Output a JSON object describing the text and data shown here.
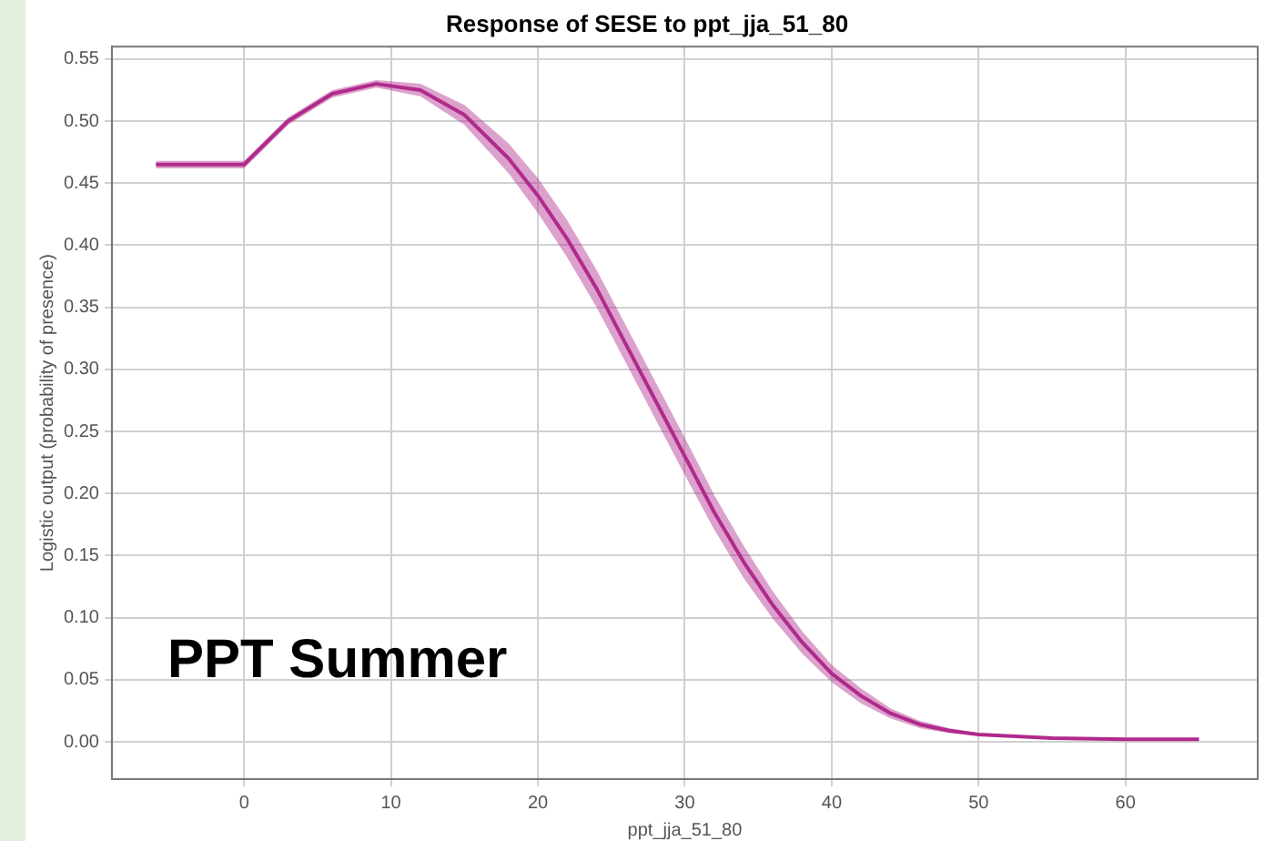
{
  "chart_data": {
    "type": "line",
    "title": "Response of SESE to ppt_jja_51_80",
    "xlabel": "ppt_jja_51_80",
    "ylabel": "Logistic output (probability of presence)",
    "annotations": [
      "PPT Summer"
    ],
    "x": [
      -6,
      0,
      3,
      6,
      9,
      12,
      15,
      18,
      20,
      22,
      24,
      26,
      28,
      30,
      32,
      34,
      36,
      38,
      40,
      42,
      44,
      46,
      48,
      50,
      55,
      60,
      65
    ],
    "series": [
      {
        "color": "#b02a8c",
        "values": [
          0.465,
          0.465,
          0.5,
          0.522,
          0.53,
          0.525,
          0.505,
          0.47,
          0.44,
          0.405,
          0.365,
          0.32,
          0.275,
          0.23,
          0.185,
          0.145,
          0.11,
          0.08,
          0.055,
          0.037,
          0.023,
          0.014,
          0.009,
          0.006,
          0.003,
          0.002,
          0.002
        ],
        "lower": [
          0.462,
          0.462,
          0.497,
          0.519,
          0.527,
          0.52,
          0.497,
          0.458,
          0.426,
          0.39,
          0.35,
          0.305,
          0.26,
          0.215,
          0.171,
          0.132,
          0.099,
          0.071,
          0.048,
          0.031,
          0.019,
          0.011,
          0.007,
          0.005,
          0.002,
          0.001,
          0.001
        ],
        "upper": [
          0.468,
          0.468,
          0.503,
          0.525,
          0.533,
          0.53,
          0.513,
          0.482,
          0.454,
          0.42,
          0.38,
          0.335,
          0.29,
          0.245,
          0.199,
          0.158,
          0.121,
          0.089,
          0.062,
          0.043,
          0.027,
          0.017,
          0.011,
          0.007,
          0.004,
          0.003,
          0.003
        ]
      }
    ],
    "xlim": [
      -9,
      69
    ],
    "xticks": [
      0,
      10,
      20,
      30,
      40,
      50,
      60
    ],
    "ylim": [
      -0.03,
      0.56
    ],
    "yticks": [
      {
        "value": 0,
        "label": "0.00"
      },
      {
        "value": 0.05,
        "label": "0.05"
      },
      {
        "value": 0.1,
        "label": "0.10"
      },
      {
        "value": 0.15,
        "label": "0.15"
      },
      {
        "value": 0.2,
        "label": "0.20"
      },
      {
        "value": 0.25,
        "label": "0.25"
      },
      {
        "value": 0.3,
        "label": "0.30"
      },
      {
        "value": 0.35,
        "label": "0.35"
      },
      {
        "value": 0.4,
        "label": "0.40"
      },
      {
        "value": 0.45,
        "label": "0.45"
      },
      {
        "value": 0.5,
        "label": "0.50"
      },
      {
        "value": 0.55,
        "label": "0.55"
      }
    ],
    "grid": true,
    "marker": "none",
    "line_style": "solid"
  }
}
